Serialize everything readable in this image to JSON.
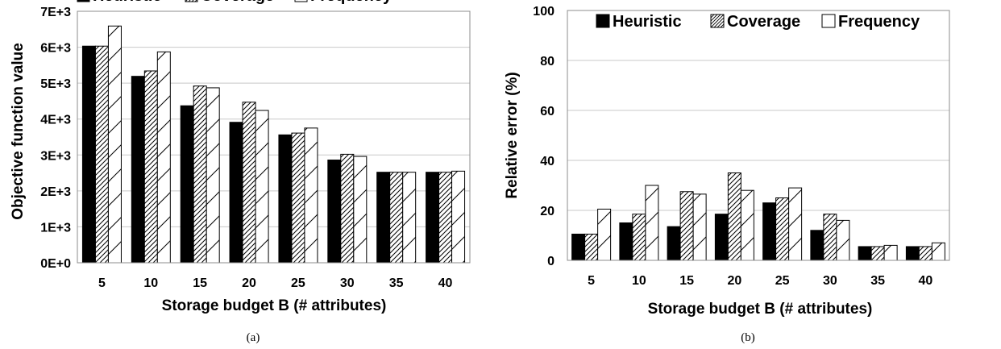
{
  "chart_data": [
    {
      "type": "bar",
      "caption": "(a)",
      "categories": [
        "5",
        "10",
        "15",
        "20",
        "25",
        "30",
        "35",
        "40"
      ],
      "xlabel": "Storage budget B (# attributes)",
      "ylabel": "Objective function value",
      "ylim": [
        0,
        7000
      ],
      "yticks": [
        0,
        1000,
        2000,
        3000,
        4000,
        5000,
        6000,
        7000
      ],
      "ytick_labels": [
        "0E+0",
        "1E+3",
        "2E+3",
        "3E+3",
        "4E+3",
        "5E+3",
        "6E+3",
        "7E+3"
      ],
      "grid": true,
      "legend_position": "top",
      "series": [
        {
          "name": "Heuristic",
          "fill": "solid",
          "color": "#000000",
          "values": [
            6030,
            5190,
            4370,
            3910,
            3560,
            2860,
            2520,
            2520
          ]
        },
        {
          "name": "Coverage",
          "fill": "dense-hatch",
          "color": "#000000",
          "values": [
            6030,
            5340,
            4920,
            4470,
            3610,
            3020,
            2520,
            2520
          ]
        },
        {
          "name": "Frequency",
          "fill": "sparse-hatch",
          "color": "#000000",
          "values": [
            6590,
            5870,
            4870,
            4240,
            3750,
            2960,
            2520,
            2550
          ]
        }
      ]
    },
    {
      "type": "bar",
      "caption": "(b)",
      "categories": [
        "5",
        "10",
        "15",
        "20",
        "25",
        "30",
        "35",
        "40"
      ],
      "xlabel": "Storage budget B (# attributes)",
      "ylabel": "Relative error (%)",
      "ylim": [
        0,
        100
      ],
      "yticks": [
        0,
        20,
        40,
        60,
        80,
        100
      ],
      "ytick_labels": [
        "0",
        "20",
        "40",
        "60",
        "80",
        "100"
      ],
      "grid": true,
      "legend_position": "top-right",
      "series": [
        {
          "name": "Heuristic",
          "fill": "solid",
          "color": "#000000",
          "values": [
            10.5,
            15,
            13.5,
            18.5,
            23,
            12,
            5.5,
            5.5
          ]
        },
        {
          "name": "Coverage",
          "fill": "dense-hatch",
          "color": "#000000",
          "values": [
            10.5,
            18.5,
            27.5,
            35,
            25,
            18.5,
            5.5,
            5.5
          ]
        },
        {
          "name": "Frequency",
          "fill": "sparse-hatch",
          "color": "#000000",
          "values": [
            20.5,
            30,
            26.5,
            28,
            29,
            16,
            6,
            7
          ]
        }
      ]
    }
  ]
}
